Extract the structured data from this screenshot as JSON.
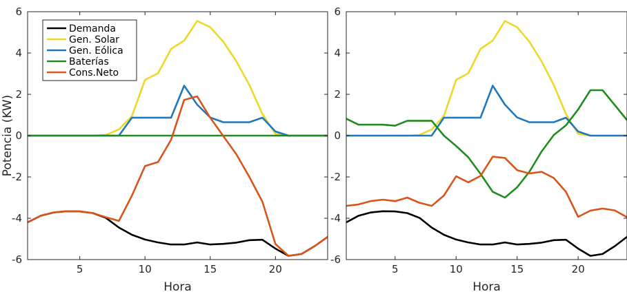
{
  "chart_data": [
    {
      "type": "line",
      "xlabel": "Hora",
      "ylabel": "Potencia (KW)",
      "xlim": [
        1,
        24
      ],
      "ylim": [
        -6,
        6
      ],
      "xticks": [
        "5",
        "10",
        "15",
        "20"
      ],
      "yticks": [
        "-6",
        "-4",
        "-2",
        "0",
        "2",
        "4",
        "6"
      ],
      "legend": "top-left",
      "grid": false,
      "x": [
        1,
        2,
        3,
        4,
        5,
        6,
        7,
        8,
        9,
        10,
        11,
        12,
        13,
        14,
        15,
        16,
        17,
        18,
        19,
        20,
        21,
        22,
        23,
        24
      ],
      "series": [
        {
          "name": "Demanda",
          "color": "#000000",
          "values": [
            -4.2,
            -3.88,
            -3.72,
            -3.66,
            -3.67,
            -3.75,
            -3.98,
            -4.45,
            -4.8,
            -5.03,
            -5.17,
            -5.27,
            -5.27,
            -5.17,
            -5.27,
            -5.24,
            -5.18,
            -5.06,
            -5.04,
            -5.47,
            -5.82,
            -5.73,
            -5.35,
            -4.9
          ]
        },
        {
          "name": "Gen. Solar",
          "color": "#edd82a",
          "values": [
            0,
            0,
            0,
            0,
            0,
            0,
            0.03,
            0.3,
            0.95,
            2.7,
            3.02,
            4.2,
            4.6,
            5.55,
            5.25,
            4.55,
            3.6,
            2.45,
            1.05,
            0.08,
            0,
            0,
            0,
            0
          ]
        },
        {
          "name": "Gen. Eólica",
          "color": "#1f77bd",
          "values": [
            0,
            0,
            0,
            0,
            0,
            0,
            0,
            0,
            0.87,
            0.87,
            0.87,
            0.87,
            2.42,
            1.5,
            0.88,
            0.65,
            0.65,
            0.65,
            0.87,
            0.2,
            0,
            0,
            0,
            0
          ]
        },
        {
          "name": "Baterías",
          "color": "#1e8c1e",
          "values": [
            0,
            0,
            0,
            0,
            0,
            0,
            0,
            0,
            0,
            0,
            0,
            0,
            0,
            0,
            0,
            0,
            0,
            0,
            0,
            0,
            0,
            0,
            0,
            0
          ]
        },
        {
          "name": "Cons.Neto",
          "color": "#d9541a",
          "values": [
            -4.2,
            -3.88,
            -3.72,
            -3.66,
            -3.67,
            -3.75,
            -3.95,
            -4.13,
            -2.9,
            -1.47,
            -1.28,
            -0.2,
            1.73,
            1.9,
            0.87,
            -0.02,
            -0.9,
            -2.0,
            -3.2,
            -5.25,
            -5.82,
            -5.73,
            -5.35,
            -4.9
          ]
        }
      ]
    },
    {
      "type": "line",
      "xlabel": "Hora",
      "ylabel": "",
      "xlim": [
        1,
        24
      ],
      "ylim": [
        -6,
        6
      ],
      "xticks": [
        "5",
        "10",
        "15",
        "20"
      ],
      "yticks": [
        "-6",
        "-4",
        "-2",
        "0",
        "2",
        "4",
        "6"
      ],
      "grid": false,
      "x": [
        1,
        2,
        3,
        4,
        5,
        6,
        7,
        8,
        9,
        10,
        11,
        12,
        13,
        14,
        15,
        16,
        17,
        18,
        19,
        20,
        21,
        22,
        23,
        24
      ],
      "series": [
        {
          "color": "#000000",
          "values": [
            -4.2,
            -3.88,
            -3.72,
            -3.66,
            -3.67,
            -3.75,
            -3.98,
            -4.45,
            -4.8,
            -5.03,
            -5.17,
            -5.27,
            -5.27,
            -5.17,
            -5.27,
            -5.24,
            -5.18,
            -5.06,
            -5.04,
            -5.47,
            -5.82,
            -5.73,
            -5.35,
            -4.9
          ]
        },
        {
          "color": "#edd82a",
          "values": [
            0,
            0,
            0,
            0,
            0,
            0,
            0.03,
            0.3,
            0.95,
            2.7,
            3.02,
            4.2,
            4.6,
            5.55,
            5.25,
            4.55,
            3.6,
            2.45,
            1.05,
            0.08,
            0,
            0,
            0,
            0
          ]
        },
        {
          "color": "#1f77bd",
          "values": [
            0,
            0,
            0,
            0,
            0,
            0,
            0,
            0,
            0.87,
            0.87,
            0.87,
            0.87,
            2.42,
            1.5,
            0.88,
            0.65,
            0.65,
            0.65,
            0.87,
            0.2,
            0,
            0,
            0,
            0
          ]
        },
        {
          "color": "#1e8c1e",
          "values": [
            0.82,
            0.53,
            0.53,
            0.53,
            0.48,
            0.72,
            0.72,
            0.72,
            0,
            -0.5,
            -1.05,
            -1.85,
            -2.72,
            -3.0,
            -2.5,
            -1.75,
            -0.77,
            0.03,
            0.5,
            1.27,
            2.2,
            2.2,
            1.48,
            0.75
          ]
        },
        {
          "color": "#d9541a",
          "values": [
            -3.4,
            -3.33,
            -3.17,
            -3.1,
            -3.17,
            -3.0,
            -3.25,
            -3.4,
            -2.9,
            -1.97,
            -2.26,
            -1.95,
            -1.02,
            -1.08,
            -1.67,
            -1.83,
            -1.75,
            -2.05,
            -2.72,
            -3.93,
            -3.63,
            -3.53,
            -3.62,
            -3.95
          ]
        }
      ]
    }
  ]
}
